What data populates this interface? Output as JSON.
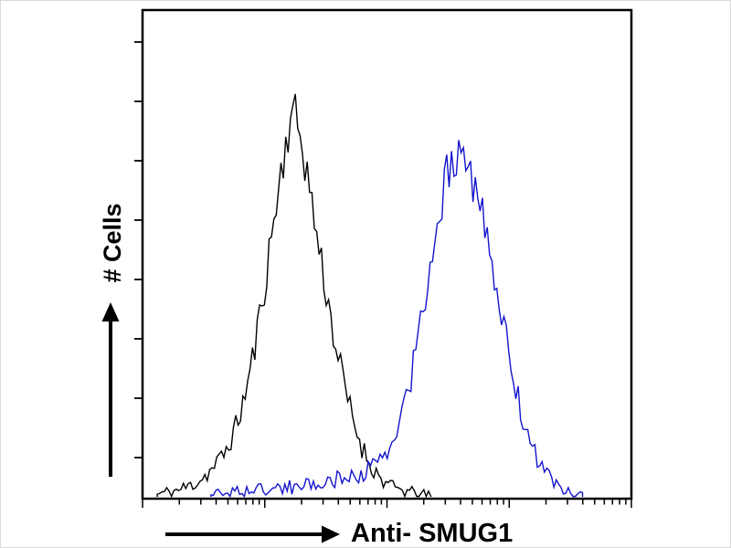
{
  "chart_data": {
    "type": "line",
    "chart_kind": "flow-cytometry-histogram-overlay",
    "title": "",
    "xlabel": "Anti- SMUG1",
    "ylabel": "# Cells",
    "x_axis": {
      "scale": "log-style-ticks",
      "decades": 4,
      "tick_labels": []
    },
    "y_axis": {
      "tick_count": 8,
      "tick_labels": []
    },
    "x_range": [
      0,
      100
    ],
    "y_range": [
      0,
      1
    ],
    "legend": "none",
    "grid": false,
    "series": [
      {
        "name": "black-control-histogram",
        "color": "#000000",
        "peak_x": 30.5,
        "peak_height": 0.8,
        "envelope": [
          [
            3,
            0.005
          ],
          [
            5,
            0.01
          ],
          [
            7,
            0.013
          ],
          [
            9,
            0.02
          ],
          [
            11,
            0.03
          ],
          [
            13,
            0.045
          ],
          [
            15,
            0.065
          ],
          [
            17,
            0.095
          ],
          [
            19,
            0.14
          ],
          [
            21,
            0.21
          ],
          [
            23,
            0.31
          ],
          [
            25,
            0.44
          ],
          [
            27,
            0.58
          ],
          [
            29,
            0.71
          ],
          [
            30.5,
            0.8
          ],
          [
            32,
            0.76
          ],
          [
            33.5,
            0.68
          ],
          [
            35,
            0.58
          ],
          [
            37,
            0.46
          ],
          [
            39,
            0.34
          ],
          [
            41,
            0.24
          ],
          [
            43,
            0.16
          ],
          [
            45,
            0.1
          ],
          [
            47,
            0.06
          ],
          [
            49,
            0.035
          ],
          [
            51,
            0.02
          ],
          [
            54,
            0.011
          ],
          [
            57,
            0.005
          ],
          [
            59,
            0.002
          ]
        ]
      },
      {
        "name": "blue-anti-smug1-histogram",
        "color": "#1414cc",
        "peak_x": 65,
        "peak_height": 0.73,
        "envelope": [
          [
            14,
            0.006
          ],
          [
            18,
            0.01
          ],
          [
            22,
            0.013
          ],
          [
            26,
            0.016
          ],
          [
            30,
            0.02
          ],
          [
            34,
            0.025
          ],
          [
            38,
            0.032
          ],
          [
            42,
            0.04
          ],
          [
            45,
            0.05
          ],
          [
            48,
            0.065
          ],
          [
            50,
            0.09
          ],
          [
            52,
            0.13
          ],
          [
            54,
            0.2
          ],
          [
            56,
            0.3
          ],
          [
            58,
            0.43
          ],
          [
            60,
            0.55
          ],
          [
            62,
            0.65
          ],
          [
            63.5,
            0.7
          ],
          [
            65,
            0.73
          ],
          [
            66.5,
            0.7
          ],
          [
            68,
            0.64
          ],
          [
            70,
            0.55
          ],
          [
            72,
            0.45
          ],
          [
            74,
            0.34
          ],
          [
            76,
            0.24
          ],
          [
            78,
            0.155
          ],
          [
            80,
            0.095
          ],
          [
            82,
            0.055
          ],
          [
            84,
            0.03
          ],
          [
            86,
            0.015
          ],
          [
            88,
            0.007
          ],
          [
            90,
            0.002
          ]
        ]
      }
    ],
    "noise": {
      "seed": 11,
      "rel": 0.05,
      "abs": 0.008
    }
  },
  "icons": {
    "y_axis_arrow": "up-arrow",
    "x_axis_arrow": "right-arrow"
  },
  "colors": {
    "axis": "#000000",
    "background": "#ffffff",
    "series_black": "#000000",
    "series_blue": "#1414cc"
  }
}
